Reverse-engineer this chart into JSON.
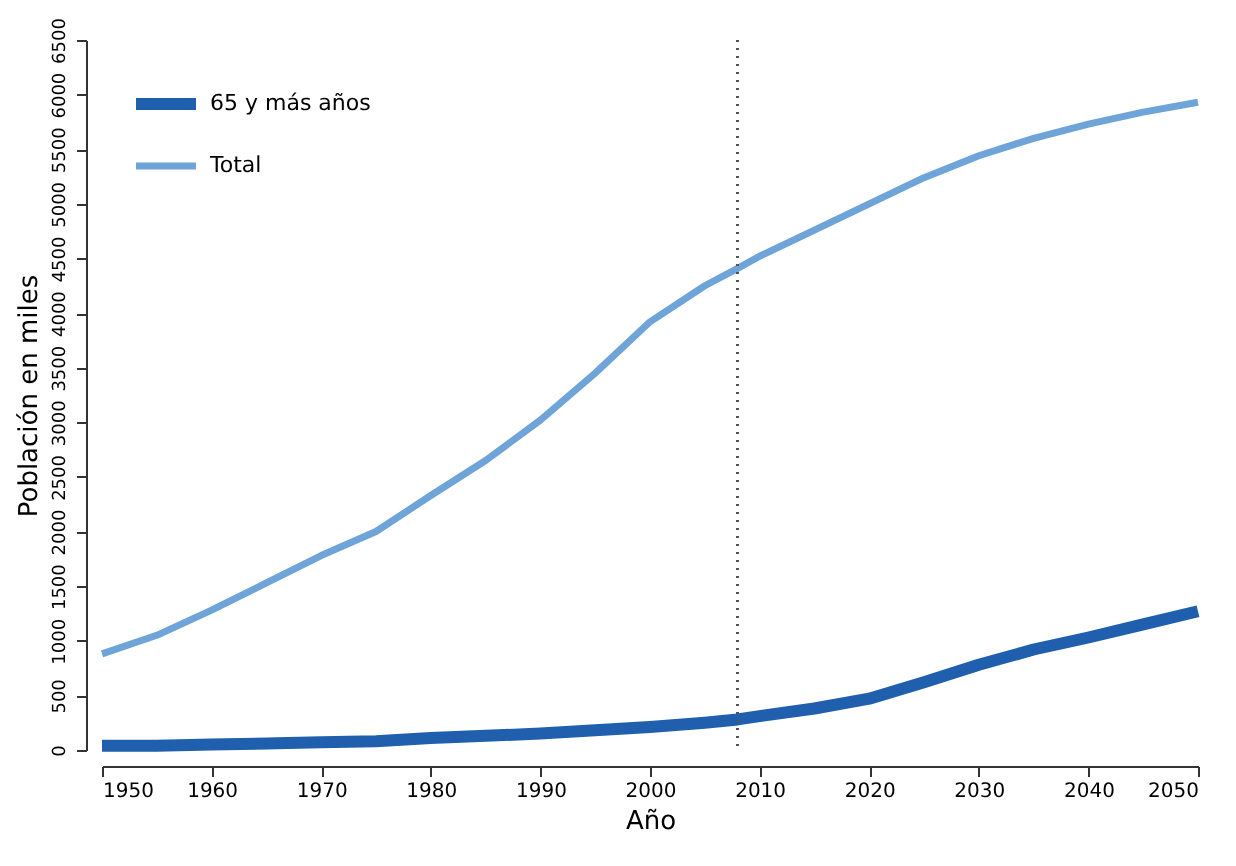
{
  "chart_data": {
    "type": "line",
    "xlabel": "Año",
    "ylabel": "Población en miles",
    "x": [
      1950,
      1955,
      1960,
      1965,
      1970,
      1975,
      1980,
      1985,
      1990,
      1995,
      2000,
      2005,
      2008,
      2010,
      2015,
      2020,
      2025,
      2030,
      2035,
      2040,
      2045,
      2050
    ],
    "series": [
      {
        "name": "65 y más años",
        "color": "#1f5fad",
        "values": [
          40,
          40,
          50,
          60,
          70,
          80,
          110,
          130,
          150,
          180,
          210,
          250,
          280,
          310,
          380,
          470,
          620,
          780,
          920,
          1030,
          1150,
          1270
        ]
      },
      {
        "name": "Total",
        "color": "#6fa4d8",
        "values": [
          880,
          1050,
          1280,
          1530,
          1780,
          2000,
          2330,
          2650,
          3020,
          3450,
          3920,
          4250,
          4410,
          4520,
          4760,
          5000,
          5240,
          5440,
          5600,
          5730,
          5840,
          5930
        ]
      }
    ],
    "xlim": [
      1950,
      2050
    ],
    "xticks": [
      1950,
      1960,
      1970,
      1980,
      1990,
      2000,
      2010,
      2020,
      2030,
      2040,
      2050
    ],
    "ylim": [
      0,
      6500
    ],
    "yticks": [
      0,
      500,
      1000,
      1500,
      2000,
      2500,
      3000,
      3500,
      4000,
      4500,
      5000,
      5500,
      6000,
      6500
    ],
    "ref_lines": [
      {
        "axis": "x",
        "value": 2008,
        "color": "#555555",
        "line_style": "dotted"
      }
    ],
    "grid": false,
    "legend": "top left",
    "marker": "none",
    "line_style": "solid"
  }
}
